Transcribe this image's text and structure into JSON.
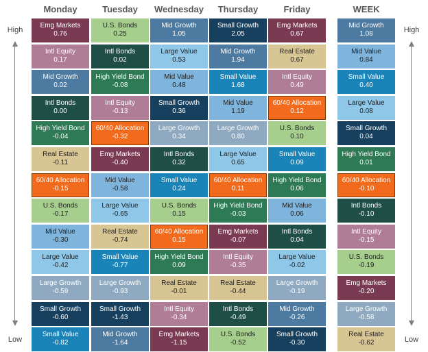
{
  "chart_data": {
    "type": "table",
    "axis_top_label": "High",
    "axis_bottom_label": "Low",
    "columns": [
      {
        "header": "Monday",
        "cells": [
          {
            "label": "Emg Markets",
            "value": "0.76"
          },
          {
            "label": "Intl Equity",
            "value": "0.17"
          },
          {
            "label": "Mid Growth",
            "value": "0.02"
          },
          {
            "label": "Intl Bonds",
            "value": "0.00"
          },
          {
            "label": "High Yield Bond",
            "value": "-0.04"
          },
          {
            "label": "Real Estate",
            "value": "-0.11"
          },
          {
            "label": "60/40 Allocation",
            "value": "-0.15"
          },
          {
            "label": "U.S. Bonds",
            "value": "-0.17"
          },
          {
            "label": "Mid Value",
            "value": "-0.30"
          },
          {
            "label": "Large Value",
            "value": "-0.42"
          },
          {
            "label": "Large Growth",
            "value": "-0.59"
          },
          {
            "label": "Small Growth",
            "value": "-0.60"
          },
          {
            "label": "Small Value",
            "value": "-0.82"
          }
        ]
      },
      {
        "header": "Tuesday",
        "cells": [
          {
            "label": "U.S. Bonds",
            "value": "0.25"
          },
          {
            "label": "Intl Bonds",
            "value": "0.02"
          },
          {
            "label": "High Yield Bond",
            "value": "-0.08"
          },
          {
            "label": "Intl Equity",
            "value": "-0.13"
          },
          {
            "label": "60/40 Allocation",
            "value": "-0.32"
          },
          {
            "label": "Emg Markets",
            "value": "-0.40"
          },
          {
            "label": "Mid Value",
            "value": "-0.58"
          },
          {
            "label": "Large Value",
            "value": "-0.65"
          },
          {
            "label": "Real Estate",
            "value": "-0.74"
          },
          {
            "label": "Small Value",
            "value": "-0.77"
          },
          {
            "label": "Large Growth",
            "value": "-0.93"
          },
          {
            "label": "Small Growth",
            "value": "-1.43"
          },
          {
            "label": "Mid Growth",
            "value": "-1.64"
          }
        ]
      },
      {
        "header": "Wednesday",
        "cells": [
          {
            "label": "Mid Growth",
            "value": "1.05"
          },
          {
            "label": "Large Value",
            "value": "0.53"
          },
          {
            "label": "Mid Value",
            "value": "0.48"
          },
          {
            "label": "Small Growth",
            "value": "0.36"
          },
          {
            "label": "Large Growth",
            "value": "0.34"
          },
          {
            "label": "Intl Bonds",
            "value": "0.32"
          },
          {
            "label": "Small Value",
            "value": "0.24"
          },
          {
            "label": "U.S. Bonds",
            "value": "0.15"
          },
          {
            "label": "60/40 Allocation",
            "value": "0.15"
          },
          {
            "label": "High Yield Bond",
            "value": "0.09"
          },
          {
            "label": "Real Estate",
            "value": "-0.01"
          },
          {
            "label": "Intl Equity",
            "value": "-0.34"
          },
          {
            "label": "Emg Markets",
            "value": "-1.15"
          }
        ]
      },
      {
        "header": "Thursday",
        "cells": [
          {
            "label": "Small Growth",
            "value": "2.05"
          },
          {
            "label": "Mid Growth",
            "value": "1.94"
          },
          {
            "label": "Small Value",
            "value": "1.68"
          },
          {
            "label": "Mid Value",
            "value": "1.19"
          },
          {
            "label": "Large Growth",
            "value": "0.80"
          },
          {
            "label": "Large Value",
            "value": "0.65"
          },
          {
            "label": "60/40 Allocation",
            "value": "0.11"
          },
          {
            "label": "High Yield Bond",
            "value": "-0.03"
          },
          {
            "label": "Emg Markets",
            "value": "-0.07"
          },
          {
            "label": "Intl Equity",
            "value": "-0.35"
          },
          {
            "label": "Real Estate",
            "value": "-0.44"
          },
          {
            "label": "Intl Bonds",
            "value": "-0.49"
          },
          {
            "label": "U.S. Bonds",
            "value": "-0.52"
          }
        ]
      },
      {
        "header": "Friday",
        "cells": [
          {
            "label": "Emg Markets",
            "value": "0.67"
          },
          {
            "label": "Real Estate",
            "value": "0.67"
          },
          {
            "label": "Intl Equity",
            "value": "0.49"
          },
          {
            "label": "60/40 Allocation",
            "value": "0.12"
          },
          {
            "label": "U.S. Bonds",
            "value": "0.10"
          },
          {
            "label": "Small Value",
            "value": "0.09"
          },
          {
            "label": "High Yield Bond",
            "value": "0.06"
          },
          {
            "label": "Mid Value",
            "value": "0.06"
          },
          {
            "label": "Intl Bonds",
            "value": "0.04"
          },
          {
            "label": "Large Value",
            "value": "-0.02"
          },
          {
            "label": "Large Growth",
            "value": "-0.19"
          },
          {
            "label": "Mid Growth",
            "value": "-0.26"
          },
          {
            "label": "Small Growth",
            "value": "-0.30"
          }
        ]
      },
      {
        "header": "WEEK",
        "cells": [
          {
            "label": "Mid Growth",
            "value": "1.08"
          },
          {
            "label": "Mid Value",
            "value": "0.84"
          },
          {
            "label": "Small Value",
            "value": "0.40"
          },
          {
            "label": "Large Value",
            "value": "0.08"
          },
          {
            "label": "Small Growth",
            "value": "0.04"
          },
          {
            "label": "High Yield Bond",
            "value": "0.01"
          },
          {
            "label": "60/40 Allocation",
            "value": "-0.10"
          },
          {
            "label": "Intl Bonds",
            "value": "-0.10"
          },
          {
            "label": "Intl Equity",
            "value": "-0.15"
          },
          {
            "label": "U.S. Bonds",
            "value": "-0.19"
          },
          {
            "label": "Emg Markets",
            "value": "-0.20"
          },
          {
            "label": "Large Growth",
            "value": "-0.58"
          },
          {
            "label": "Real Estate",
            "value": "-0.62"
          }
        ]
      }
    ],
    "category_colors": {
      "Emg Markets": "#7a3a52",
      "Intl Equity": "#b07d96",
      "Mid Growth": "#4d7aa0",
      "Intl Bonds": "#1f4e47",
      "High Yield Bond": "#2e7a55",
      "Real Estate": "#d8c594",
      "60/40 Allocation": "#f26a1b",
      "U.S. Bonds": "#a6cf8e",
      "Mid Value": "#7fb5dc",
      "Large Value": "#8fc7e8",
      "Large Growth": "#8ea9c0",
      "Small Growth": "#17405e",
      "Small Value": "#1a84b8"
    },
    "dark_text_categories": [
      "Real Estate",
      "U.S. Bonds",
      "Mid Value",
      "Large Value"
    ]
  }
}
